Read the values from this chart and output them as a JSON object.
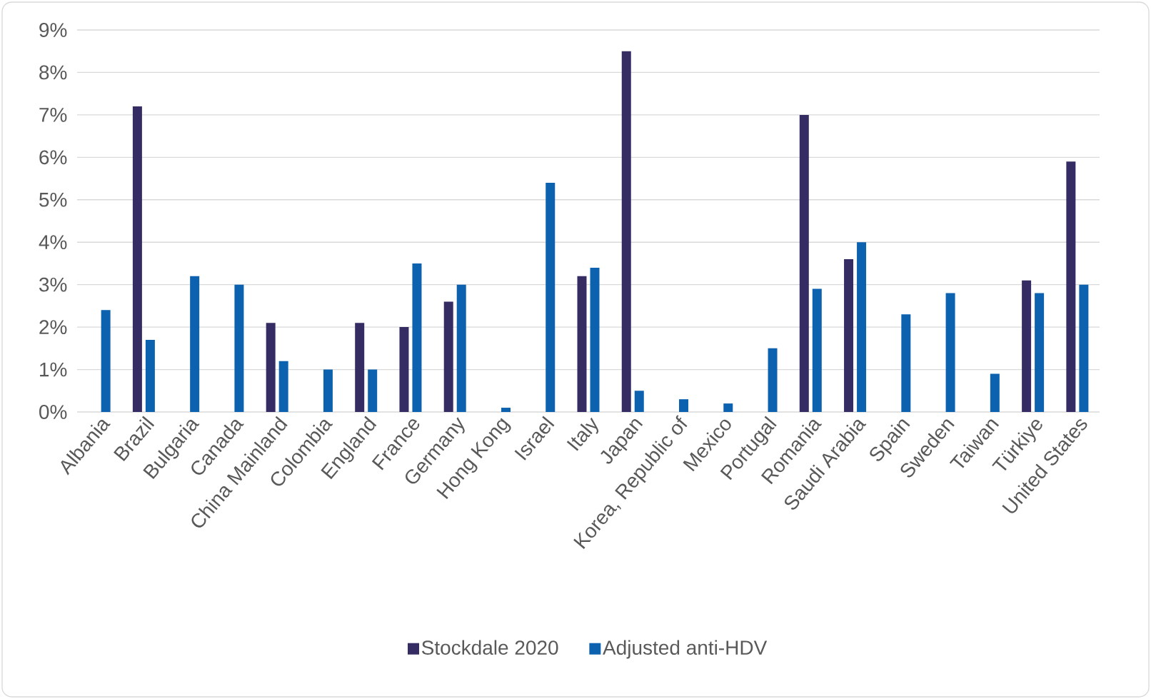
{
  "chart_data": {
    "type": "bar",
    "categories": [
      "Albania",
      "Brazil",
      "Bulgaria",
      "Canada",
      "China Mainland",
      "Colombia",
      "England",
      "France",
      "Germany",
      "Hong Kong",
      "Israel",
      "Italy",
      "Japan",
      "Korea, Republic of",
      "Mexico",
      "Portugal",
      "Romania",
      "Saudi Arabia",
      "Spain",
      "Sweden",
      "Taiwan",
      "Türkiye",
      "United States"
    ],
    "series": [
      {
        "name": "Stockdale 2020",
        "color": "#352c64",
        "values": [
          null,
          7.2,
          null,
          null,
          2.1,
          null,
          2.1,
          2.0,
          2.6,
          null,
          null,
          3.2,
          8.5,
          null,
          null,
          null,
          7.0,
          3.6,
          null,
          null,
          null,
          3.1,
          5.9
        ]
      },
      {
        "name": "Adjusted anti-HDV",
        "color": "#0d62b0",
        "values": [
          2.4,
          1.7,
          3.2,
          3.0,
          1.2,
          1.0,
          1.0,
          3.5,
          3.0,
          0.1,
          5.4,
          3.4,
          0.5,
          0.3,
          0.2,
          1.5,
          2.9,
          4.0,
          2.3,
          2.8,
          0.9,
          2.8,
          3.0
        ]
      }
    ],
    "ylim": [
      0,
      9
    ],
    "yticks": [
      {
        "value": 0,
        "label": "0%"
      },
      {
        "value": 1,
        "label": "1%"
      },
      {
        "value": 2,
        "label": "2%"
      },
      {
        "value": 3,
        "label": "3%"
      },
      {
        "value": 4,
        "label": "4%"
      },
      {
        "value": 5,
        "label": "5%"
      },
      {
        "value": 6,
        "label": "6%"
      },
      {
        "value": 7,
        "label": "7%"
      },
      {
        "value": 8,
        "label": "8%"
      },
      {
        "value": 9,
        "label": "9%"
      }
    ],
    "grid": "y",
    "legend": "bottom"
  }
}
